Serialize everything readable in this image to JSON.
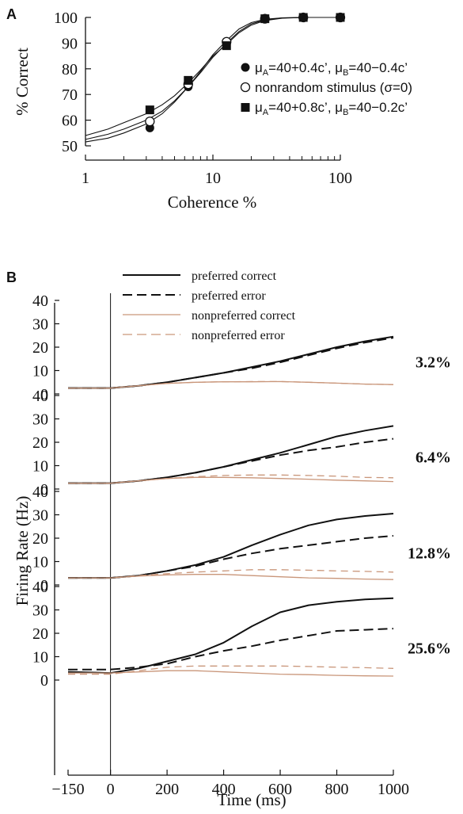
{
  "chart_data": [
    {
      "type": "line",
      "panel": "A",
      "xlabel": "Coherence %",
      "ylabel": "% Correct",
      "x_scale": "log",
      "xlim": [
        1,
        100
      ],
      "ylim": [
        50,
        100
      ],
      "x_ticks": [
        "1",
        "10",
        "100"
      ],
      "y_ticks": [
        "50",
        "60",
        "70",
        "80",
        "90",
        "100"
      ],
      "legend_position": "right",
      "series": [
        {
          "name": "μA=40+0.4c', μB=40-0.4c'",
          "label_main": "μ",
          "marker": "filled-circle",
          "x": [
            3.2,
            6.4,
            12.8,
            25.6,
            51.2,
            100
          ],
          "y": [
            57,
            73,
            90,
            99.5,
            100,
            100
          ],
          "fit_x": [
            1,
            1.5,
            2,
            3,
            4,
            5,
            6.4,
            8,
            10,
            12.8,
            16,
            20,
            25.6,
            35,
            51.2,
            100
          ],
          "fit_y": [
            51.5,
            53,
            55,
            58.5,
            62.5,
            67,
            73,
            79,
            85.5,
            91,
            95.5,
            98,
            99.3,
            99.8,
            100,
            100
          ]
        },
        {
          "name": "nonrandom stimulus (σ=0)",
          "marker": "open-circle",
          "x": [
            3.2,
            6.4,
            12.8,
            25.6,
            51.2,
            100
          ],
          "y": [
            59.5,
            74,
            90.5,
            99.5,
            100,
            100
          ],
          "fit_x": [
            1,
            1.5,
            2,
            3,
            4,
            5,
            6.4,
            8,
            10,
            12.8,
            16,
            20,
            25.6,
            35,
            51.2,
            100
          ],
          "fit_y": [
            52.5,
            54.5,
            56.5,
            60,
            63.5,
            67.5,
            73,
            78.5,
            84.5,
            90,
            94.5,
            97.5,
            99,
            99.8,
            100,
            100
          ]
        },
        {
          "name": "μA=40+0.8c', μB=40-0.2c'",
          "marker": "filled-square",
          "x": [
            3.2,
            6.4,
            12.8,
            25.6,
            51.2,
            100
          ],
          "y": [
            64,
            75.5,
            89,
            99.5,
            100,
            100
          ],
          "fit_x": [
            1,
            1.5,
            2,
            3,
            4,
            5,
            6.4,
            8,
            10,
            12.8,
            16,
            20,
            25.6,
            35,
            51.2,
            100
          ],
          "fit_y": [
            54,
            56.5,
            59,
            62.5,
            66,
            69.5,
            74.5,
            79.5,
            85,
            89.5,
            94,
            97,
            98.8,
            99.7,
            100,
            100
          ]
        }
      ]
    },
    {
      "type": "line",
      "panel": "B",
      "xlabel": "Time (ms)",
      "ylabel": "Firing Rate (Hz)",
      "xlim": [
        -150,
        1000
      ],
      "x_ticks": [
        "−150",
        "0",
        "200",
        "400",
        "600",
        "800",
        "1000"
      ],
      "y_ticks": [
        "0",
        "10",
        "20",
        "30",
        "40"
      ],
      "ylim": [
        0,
        40
      ],
      "legend": [
        {
          "name": "preferred correct",
          "color": "#111111",
          "style": "solid"
        },
        {
          "name": "preferred error",
          "color": "#111111",
          "style": "dashed"
        },
        {
          "name": "nonpreferred correct",
          "color": "#c9967a",
          "style": "solid"
        },
        {
          "name": "nonpreferred error",
          "color": "#c9967a",
          "style": "dashed"
        }
      ],
      "x": [
        -150,
        0,
        100,
        200,
        300,
        400,
        500,
        600,
        700,
        800,
        900,
        1000
      ],
      "subplots": [
        {
          "label": "3.2%",
          "series": [
            {
              "name": "preferred correct",
              "values": [
                2.5,
                2.5,
                3.5,
                5,
                7,
                9,
                11.5,
                14,
                17,
                20,
                22.5,
                24.5
              ]
            },
            {
              "name": "preferred error",
              "values": [
                2.5,
                2.5,
                3.5,
                5,
                7,
                9,
                11,
                13.5,
                16.5,
                19.5,
                22,
                24
              ]
            },
            {
              "name": "nonpreferred correct",
              "values": [
                2.5,
                2.5,
                3.5,
                4.5,
                5,
                5.2,
                5.2,
                5.3,
                5,
                4.6,
                4.2,
                4
              ]
            },
            {
              "name": "nonpreferred error",
              "values": [
                2.5,
                2.5,
                3.5,
                4.5,
                5,
                5.2,
                5.3,
                5.3,
                5,
                4.6,
                4.2,
                4
              ]
            }
          ]
        },
        {
          "label": "6.4%",
          "series": [
            {
              "name": "preferred correct",
              "values": [
                2.5,
                2.5,
                3.5,
                5,
                7,
                9.5,
                12.5,
                15.5,
                19,
                22.5,
                25,
                27
              ]
            },
            {
              "name": "preferred error",
              "values": [
                2.5,
                2.5,
                3.5,
                5,
                7,
                9.5,
                12,
                14.5,
                16.5,
                18,
                20,
                21.5
              ]
            },
            {
              "name": "nonpreferred correct",
              "values": [
                2.5,
                2.5,
                3.5,
                4.5,
                5,
                5,
                4.8,
                4.5,
                4.2,
                3.8,
                3.5,
                3.2
              ]
            },
            {
              "name": "nonpreferred error",
              "values": [
                2.5,
                2.5,
                3.5,
                4.5,
                5.3,
                5.8,
                6,
                6,
                5.8,
                5.5,
                5,
                4.8
              ]
            }
          ]
        },
        {
          "label": "12.8%",
          "series": [
            {
              "name": "preferred correct",
              "values": [
                3,
                3,
                4,
                6,
                8.5,
                12,
                17,
                21.5,
                25.5,
                28,
                29.5,
                30.5
              ]
            },
            {
              "name": "preferred error",
              "values": [
                3,
                3,
                4,
                6,
                8,
                11,
                13.5,
                15.5,
                17,
                18.5,
                20,
                21
              ]
            },
            {
              "name": "nonpreferred correct",
              "values": [
                3,
                3,
                3.8,
                4.3,
                4.5,
                4.5,
                4,
                3.5,
                3,
                2.8,
                2.5,
                2.3
              ]
            },
            {
              "name": "nonpreferred error",
              "values": [
                3,
                3,
                4,
                4.8,
                5.5,
                6,
                6.5,
                6.5,
                6.3,
                6,
                5.8,
                5.5
              ]
            }
          ]
        },
        {
          "label": "25.6%",
          "series": [
            {
              "name": "preferred correct",
              "values": [
                3.5,
                3,
                5,
                8,
                11,
                16,
                23,
                29,
                32,
                33.5,
                34.5,
                35
              ]
            },
            {
              "name": "preferred error",
              "values": [
                4.5,
                4.5,
                5.5,
                7,
                10,
                12.5,
                14.5,
                17,
                19,
                21,
                21.5,
                22
              ]
            },
            {
              "name": "nonpreferred correct",
              "values": [
                3,
                3,
                3.5,
                4,
                4,
                3.5,
                3,
                2.5,
                2.3,
                2,
                1.8,
                1.7
              ]
            },
            {
              "name": "nonpreferred error",
              "values": [
                2.5,
                2.5,
                4,
                5.5,
                6,
                6,
                6,
                6,
                5.8,
                5.5,
                5.3,
                5
              ]
            }
          ]
        }
      ]
    }
  ],
  "panel_a_letter": "A",
  "panel_b_letter": "B",
  "legend_a": {
    "row1": {
      "mu": "μ",
      "a_sub": "A",
      "a_expr": "=40+0.4c’, ",
      "b_sub": "B",
      "b_expr": "=40−0.4c’"
    },
    "row2": "nonrandom stimulus (σ=0)",
    "row3": {
      "mu": "μ",
      "a_sub": "A",
      "a_expr": "=40+0.8c’, ",
      "b_sub": "B",
      "b_expr": "=40−0.2c’"
    }
  },
  "colors": {
    "preferred": "#111111",
    "nonpreferred": "#c9967a",
    "axis": "#111111"
  }
}
